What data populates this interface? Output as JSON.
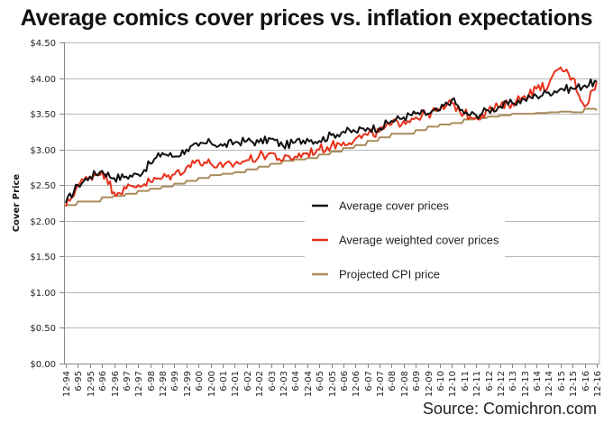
{
  "chart_data": {
    "type": "line",
    "title": "Average comics cover prices vs. inflation expectations",
    "source": "Source: Comichron.com",
    "xlabel": "",
    "ylabel": "Cover Price",
    "ylim": [
      0,
      4.5
    ],
    "ytick_values": [
      0,
      0.5,
      1.0,
      1.5,
      2.0,
      2.5,
      3.0,
      3.5,
      4.0,
      4.5
    ],
    "ytick_labels": [
      "$0.00",
      "$0.50",
      "$1.00",
      "$1.50",
      "$2.00",
      "$2.50",
      "$3.00",
      "$3.50",
      "$4.00",
      "$4.50"
    ],
    "grid": true,
    "legend_position": "center-right",
    "categories": [
      "12-94",
      "6-95",
      "12-95",
      "6-96",
      "12-96",
      "6-97",
      "12-97",
      "6-98",
      "12-98",
      "6-99",
      "12-99",
      "6-00",
      "12-00",
      "6-01",
      "12-01",
      "6-02",
      "12-02",
      "6-03",
      "12-03",
      "6-04",
      "12-04",
      "6-05",
      "12-05",
      "6-06",
      "12-06",
      "6-07",
      "12-07",
      "6-08",
      "12-08",
      "6-09",
      "12-09",
      "6-10",
      "12-10",
      "6-11",
      "12-11",
      "6-12",
      "12-12",
      "6-13",
      "12-13",
      "6-14",
      "12-14",
      "6-15",
      "12-15",
      "6-16",
      "12-16"
    ],
    "series": [
      {
        "name": "Average cover prices",
        "color": "#111111",
        "values": [
          2.25,
          2.5,
          2.62,
          2.7,
          2.6,
          2.62,
          2.65,
          2.8,
          2.95,
          2.9,
          3.0,
          3.05,
          3.1,
          3.05,
          3.1,
          3.12,
          3.1,
          3.15,
          3.05,
          3.1,
          3.15,
          3.12,
          3.2,
          3.25,
          3.25,
          3.3,
          3.3,
          3.4,
          3.45,
          3.5,
          3.5,
          3.55,
          3.7,
          3.5,
          3.48,
          3.55,
          3.6,
          3.65,
          3.7,
          3.75,
          3.8,
          3.85,
          3.85,
          3.9,
          3.95
        ]
      },
      {
        "name": "Average weighted cover prices",
        "color": "#e8311a",
        "values": [
          2.2,
          2.5,
          2.62,
          2.7,
          2.4,
          2.45,
          2.5,
          2.55,
          2.6,
          2.65,
          2.75,
          2.85,
          2.8,
          2.75,
          2.8,
          2.85,
          2.9,
          2.95,
          2.85,
          2.9,
          2.95,
          3.0,
          3.05,
          3.1,
          3.15,
          3.2,
          3.25,
          3.35,
          3.4,
          3.45,
          3.5,
          3.55,
          3.65,
          3.5,
          3.45,
          3.55,
          3.6,
          3.65,
          3.75,
          3.85,
          3.9,
          4.15,
          4.0,
          3.6,
          3.95
        ]
      },
      {
        "name": "Projected CPI price",
        "color": "#a88c5c",
        "values": [
          2.22,
          2.27,
          2.27,
          2.33,
          2.35,
          2.38,
          2.42,
          2.45,
          2.48,
          2.52,
          2.56,
          2.6,
          2.64,
          2.66,
          2.68,
          2.72,
          2.76,
          2.8,
          2.84,
          2.86,
          2.88,
          2.93,
          2.97,
          3.02,
          3.06,
          3.12,
          3.17,
          3.22,
          3.22,
          3.27,
          3.32,
          3.35,
          3.37,
          3.42,
          3.44,
          3.46,
          3.48,
          3.5,
          3.5,
          3.51,
          3.52,
          3.53,
          3.52,
          3.57,
          3.55
        ]
      }
    ]
  }
}
